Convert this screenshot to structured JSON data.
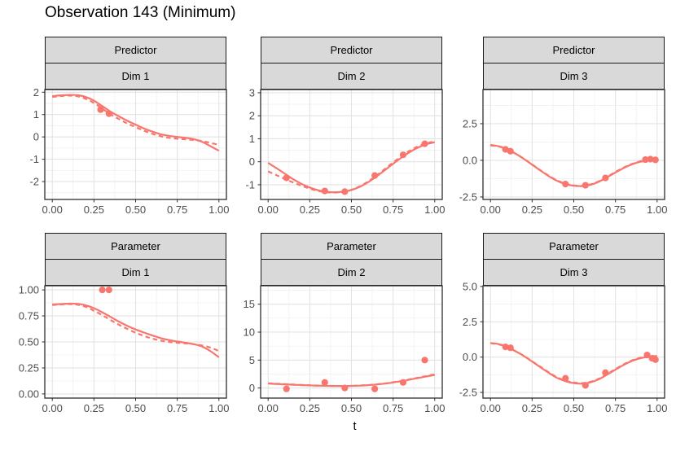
{
  "title": "Observation 143 (Minimum)",
  "xlabel": "t",
  "colors": {
    "accent": "#F8766D",
    "strip_bg": "#D9D9D9",
    "strip_border": "#1A1A1A",
    "panel_border": "#2E2E2E",
    "panel_bg": "#FFFFFF",
    "grid_major": "#E3E3E3",
    "grid_minor": "#F1F1F1",
    "axis_text": "#4D4D4D",
    "title_text": "#000000"
  },
  "curve_t": [
    0,
    0.05,
    0.1,
    0.15,
    0.2,
    0.25,
    0.3,
    0.35,
    0.4,
    0.45,
    0.5,
    0.55,
    0.6,
    0.65,
    0.7,
    0.75,
    0.8,
    0.85,
    0.9,
    0.95,
    1
  ],
  "chart_data": [
    {
      "type": "line+scatter",
      "facet_row": "Predictor",
      "facet_col": "Dim 1",
      "x_domain": [
        -0.045,
        1.045
      ],
      "y_domain": [
        -2.8,
        2.12
      ],
      "x_tick_values": [
        0,
        0.25,
        0.5,
        0.75,
        1
      ],
      "x_tick_labels": [
        "0.00",
        "0.25",
        "0.50",
        "0.75",
        "1.00"
      ],
      "y_tick_values": [
        2,
        1,
        0,
        -1,
        -2
      ],
      "y_tick_labels": [
        "2",
        "1",
        "0",
        "-1",
        "-2"
      ],
      "series": [
        {
          "name": "estimate-dashed",
          "style": "dashed",
          "y": [
            1.79,
            1.83,
            1.85,
            1.82,
            1.71,
            1.52,
            1.27,
            1.01,
            0.8,
            0.6,
            0.44,
            0.28,
            0.14,
            0.03,
            -0.04,
            -0.08,
            -0.11,
            -0.14,
            -0.19,
            -0.27,
            -0.36
          ]
        },
        {
          "name": "truth-solid",
          "style": "solid",
          "y": [
            1.82,
            1.86,
            1.88,
            1.87,
            1.79,
            1.62,
            1.38,
            1.13,
            0.92,
            0.72,
            0.55,
            0.38,
            0.24,
            0.12,
            0.05,
            0.0,
            -0.04,
            -0.1,
            -0.22,
            -0.42,
            -0.62
          ]
        }
      ],
      "points": {
        "x": [
          0.29,
          0.34
        ],
        "y": [
          1.22,
          1.04
        ]
      }
    },
    {
      "type": "line+scatter",
      "facet_row": "Predictor",
      "facet_col": "Dim 2",
      "x_domain": [
        -0.045,
        1.045
      ],
      "y_domain": [
        -1.64,
        3.14
      ],
      "x_tick_values": [
        0,
        0.25,
        0.5,
        0.75,
        1
      ],
      "x_tick_labels": [
        "0.00",
        "0.25",
        "0.50",
        "0.75",
        "1.00"
      ],
      "y_tick_values": [
        3,
        2,
        1,
        0,
        -1
      ],
      "y_tick_labels": [
        "3",
        "2",
        "1",
        "0",
        "-1"
      ],
      "series": [
        {
          "name": "estimate-dashed",
          "style": "dashed",
          "y": [
            -0.42,
            -0.58,
            -0.75,
            -0.9,
            -1.04,
            -1.17,
            -1.27,
            -1.33,
            -1.34,
            -1.31,
            -1.22,
            -1.07,
            -0.86,
            -0.6,
            -0.32,
            -0.03,
            0.24,
            0.48,
            0.67,
            0.8,
            0.88
          ]
        },
        {
          "name": "truth-solid",
          "style": "solid",
          "y": [
            -0.05,
            -0.28,
            -0.52,
            -0.76,
            -0.96,
            -1.12,
            -1.24,
            -1.31,
            -1.33,
            -1.3,
            -1.23,
            -1.09,
            -0.89,
            -0.64,
            -0.37,
            -0.09,
            0.18,
            0.42,
            0.62,
            0.76,
            0.85
          ]
        }
      ],
      "points": {
        "x": [
          0.11,
          0.34,
          0.46,
          0.64,
          0.81,
          0.94
        ],
        "y": [
          -0.7,
          -1.27,
          -1.3,
          -0.6,
          0.3,
          0.78
        ]
      }
    },
    {
      "type": "line+scatter",
      "facet_row": "Predictor",
      "facet_col": "Dim 3",
      "x_domain": [
        -0.045,
        1.045
      ],
      "y_domain": [
        -2.67,
        4.83
      ],
      "x_tick_values": [
        0,
        0.25,
        0.5,
        0.75,
        1
      ],
      "x_tick_labels": [
        "0.00",
        "0.25",
        "0.50",
        "0.75",
        "1.00"
      ],
      "y_tick_values": [
        2.5,
        0,
        -2.5
      ],
      "y_tick_labels": [
        "2.5",
        "0.0",
        "-2.5"
      ],
      "series": [
        {
          "name": "estimate-dashed",
          "style": "dashed",
          "y": [
            1.02,
            0.94,
            0.75,
            0.46,
            0.11,
            -0.28,
            -0.68,
            -1.05,
            -1.37,
            -1.59,
            -1.71,
            -1.74,
            -1.64,
            -1.43,
            -1.13,
            -0.8,
            -0.49,
            -0.24,
            -0.07,
            0.02,
            0.06
          ]
        },
        {
          "name": "truth-solid",
          "style": "solid",
          "y": [
            1.05,
            0.96,
            0.76,
            0.46,
            0.1,
            -0.3,
            -0.7,
            -1.08,
            -1.4,
            -1.62,
            -1.73,
            -1.76,
            -1.67,
            -1.46,
            -1.16,
            -0.83,
            -0.52,
            -0.27,
            -0.1,
            -0.01,
            0.03
          ]
        }
      ],
      "points": {
        "x": [
          0.09,
          0.12,
          0.45,
          0.57,
          0.69,
          0.93,
          0.96,
          0.99
        ],
        "y": [
          0.75,
          0.62,
          -1.62,
          -1.7,
          -1.2,
          0.05,
          0.08,
          0.03
        ]
      }
    },
    {
      "type": "line+scatter",
      "facet_row": "Parameter",
      "facet_col": "Dim 1",
      "x_domain": [
        -0.045,
        1.045
      ],
      "y_domain": [
        -0.04,
        1.04
      ],
      "x_tick_values": [
        0,
        0.25,
        0.5,
        0.75,
        1
      ],
      "x_tick_labels": [
        "0.00",
        "0.25",
        "0.50",
        "0.75",
        "1.00"
      ],
      "y_tick_values": [
        1,
        0.75,
        0.5,
        0.25,
        0
      ],
      "y_tick_labels": [
        "1.00",
        "0.75",
        "0.50",
        "0.25",
        "0.00"
      ],
      "series": [
        {
          "name": "estimate-dashed",
          "style": "dashed",
          "y": [
            0.855,
            0.86,
            0.864,
            0.858,
            0.838,
            0.8,
            0.757,
            0.71,
            0.665,
            0.625,
            0.588,
            0.558,
            0.532,
            0.513,
            0.5,
            0.492,
            0.486,
            0.478,
            0.465,
            0.445,
            0.412
          ]
        },
        {
          "name": "truth-solid",
          "style": "solid",
          "y": [
            0.86,
            0.864,
            0.868,
            0.866,
            0.852,
            0.824,
            0.785,
            0.74,
            0.695,
            0.655,
            0.62,
            0.59,
            0.562,
            0.537,
            0.518,
            0.504,
            0.492,
            0.478,
            0.455,
            0.41,
            0.352
          ]
        }
      ],
      "points": {
        "x": [
          0.3,
          0.34
        ],
        "y": [
          1.0,
          1.0
        ]
      }
    },
    {
      "type": "line+scatter",
      "facet_row": "Parameter",
      "facet_col": "Dim 2",
      "x_domain": [
        -0.045,
        1.045
      ],
      "y_domain": [
        -1.8,
        18.3
      ],
      "x_tick_values": [
        0,
        0.25,
        0.5,
        0.75,
        1
      ],
      "x_tick_labels": [
        "0.00",
        "0.25",
        "0.50",
        "0.75",
        "1.00"
      ],
      "y_tick_values": [
        15,
        10,
        5,
        0
      ],
      "y_tick_labels": [
        "15",
        "10",
        "5",
        "0"
      ],
      "series": [
        {
          "name": "estimate-dashed",
          "style": "dashed",
          "y": [
            0.85,
            0.77,
            0.7,
            0.62,
            0.55,
            0.49,
            0.44,
            0.4,
            0.38,
            0.37,
            0.39,
            0.45,
            0.53,
            0.65,
            0.82,
            1.03,
            1.27,
            1.55,
            1.85,
            2.15,
            2.45
          ]
        },
        {
          "name": "truth-solid",
          "style": "solid",
          "y": [
            0.8,
            0.73,
            0.66,
            0.59,
            0.53,
            0.47,
            0.43,
            0.39,
            0.37,
            0.36,
            0.38,
            0.43,
            0.51,
            0.63,
            0.79,
            0.99,
            1.23,
            1.5,
            1.79,
            2.08,
            2.35
          ]
        }
      ],
      "points": {
        "x": [
          0.11,
          0.34,
          0.46,
          0.64,
          0.81,
          0.94
        ],
        "y": [
          -0.15,
          1.0,
          0.0,
          -0.15,
          1.0,
          5.0
        ]
      }
    },
    {
      "type": "line+scatter",
      "facet_row": "Parameter",
      "facet_col": "Dim 3",
      "x_domain": [
        -0.045,
        1.045
      ],
      "y_domain": [
        -2.9,
        5.05
      ],
      "x_tick_values": [
        0,
        0.25,
        0.5,
        0.75,
        1
      ],
      "x_tick_labels": [
        "0.00",
        "0.25",
        "0.50",
        "0.75",
        "1.00"
      ],
      "y_tick_values": [
        5,
        2.5,
        0,
        -2.5
      ],
      "y_tick_labels": [
        "5.0",
        "2.5",
        "0.0",
        "-2.5"
      ],
      "series": [
        {
          "name": "estimate-dashed",
          "style": "dashed",
          "y": [
            0.98,
            0.9,
            0.71,
            0.42,
            0.09,
            -0.3,
            -0.69,
            -1.08,
            -1.43,
            -1.67,
            -1.8,
            -1.84,
            -1.75,
            -1.53,
            -1.2,
            -0.85,
            -0.51,
            -0.23,
            -0.04,
            0.05,
            0.08
          ]
        },
        {
          "name": "truth-solid",
          "style": "solid",
          "y": [
            1.0,
            0.92,
            0.72,
            0.42,
            0.08,
            -0.32,
            -0.72,
            -1.12,
            -1.47,
            -1.71,
            -1.84,
            -1.88,
            -1.79,
            -1.57,
            -1.24,
            -0.89,
            -0.55,
            -0.27,
            -0.08,
            0.02,
            0.05
          ]
        }
      ],
      "points": {
        "x": [
          0.09,
          0.12,
          0.45,
          0.57,
          0.69,
          0.94,
          0.97,
          0.99
        ],
        "y": [
          0.72,
          0.66,
          -1.5,
          -2.0,
          -1.1,
          0.15,
          -0.08,
          -0.18
        ]
      }
    }
  ]
}
